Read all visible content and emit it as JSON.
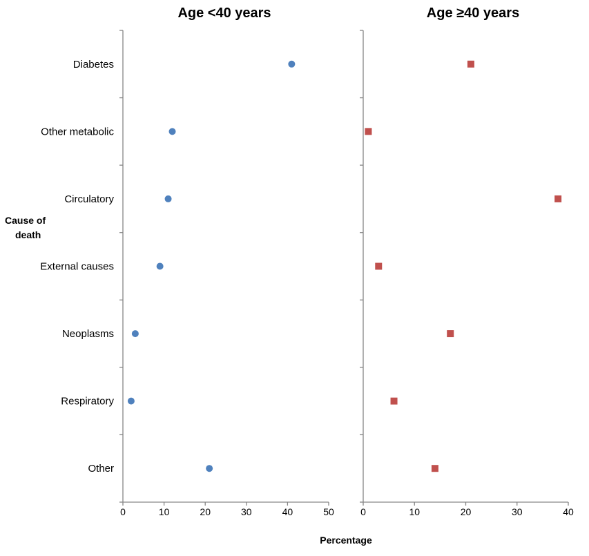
{
  "chart_data": [
    {
      "type": "scatter",
      "title": "Age <40 years",
      "categories": [
        "Diabetes",
        "Other metabolic",
        "Circulatory",
        "External causes",
        "Neoplasms",
        "Respiratory",
        "Other"
      ],
      "xlim": [
        0,
        50
      ],
      "xticks": [
        0,
        10,
        20,
        30,
        40,
        50
      ],
      "marker": "circle",
      "color": "#4F81BD",
      "values": [
        41,
        12,
        11,
        9,
        3,
        2,
        21
      ]
    },
    {
      "type": "scatter",
      "title": "Age ≥40 years",
      "categories": [
        "Diabetes",
        "Other metabolic",
        "Circulatory",
        "External causes",
        "Neoplasms",
        "Respiratory",
        "Other"
      ],
      "xlim": [
        0,
        40
      ],
      "xticks": [
        0,
        10,
        20,
        30,
        40
      ],
      "marker": "square",
      "color": "#C0504D",
      "values": [
        21,
        1,
        38,
        3,
        17,
        6,
        14
      ]
    }
  ],
  "ylabel": [
    "Cause of",
    "death"
  ],
  "xlabel": "Percentage"
}
